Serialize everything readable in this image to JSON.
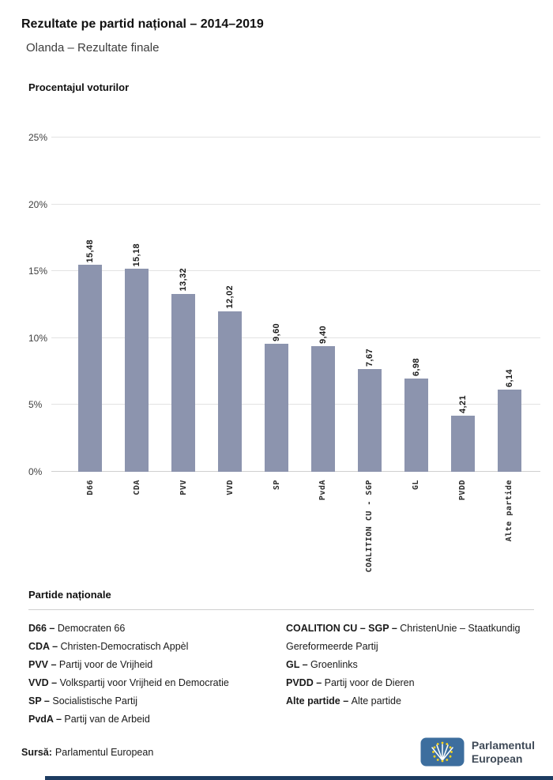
{
  "chart_data": {
    "type": "bar",
    "title": "Rezultate pe partid național – 2014–2019",
    "subtitle": "Olanda – Rezultate finale",
    "ylabel": "Procentajul voturilor",
    "categories": [
      "D66",
      "CDA",
      "PVV",
      "VVD",
      "SP",
      "PvdA",
      "COALITION CU - SGP",
      "GL",
      "PVDD",
      "Alte partide"
    ],
    "values": [
      15.48,
      15.18,
      13.32,
      12.02,
      9.6,
      9.4,
      7.67,
      6.98,
      4.21,
      6.14
    ],
    "value_labels": [
      "15,48",
      "15,18",
      "13,32",
      "12,02",
      "9,60",
      "9,40",
      "7,67",
      "6,98",
      "4,21",
      "6,14"
    ],
    "ylim": [
      0,
      25
    ],
    "yticks": [
      "0%",
      "5%",
      "10%",
      "15%",
      "20%",
      "25%"
    ],
    "grid": true,
    "legend_position": "below",
    "bar_color": "#8c94ae"
  },
  "legend": {
    "title": "Partide naționale",
    "separator": " – ",
    "columns": [
      [
        {
          "abbr": "D66",
          "name": "Democraten 66"
        },
        {
          "abbr": "CDA",
          "name": "Christen-Democratisch Appèl"
        },
        {
          "abbr": "PVV",
          "name": "Partij voor de Vrijheid"
        },
        {
          "abbr": "VVD",
          "name": "Volkspartij voor Vrijheid en Democratie"
        },
        {
          "abbr": "SP",
          "name": "Socialistische Partij"
        },
        {
          "abbr": "PvdA",
          "name": "Partij van de Arbeid"
        }
      ],
      [
        {
          "abbr": "COALITION CU – SGP",
          "name": "ChristenUnie – Staatkundig Gereformeerde Partij"
        },
        {
          "abbr": "GL",
          "name": "Groenlinks"
        },
        {
          "abbr": "PVDD",
          "name": "Partij voor de Dieren"
        },
        {
          "abbr": "Alte partide",
          "name": "Alte partide"
        }
      ]
    ]
  },
  "footer": {
    "source_label": "Sursă:",
    "source_text": "Parlamentul European",
    "bar_color": "#1d3c61",
    "logo": {
      "line1": "Parlamentul",
      "line2": "European",
      "blue": "#3d6e9e",
      "star_color": "#ffd617",
      "text_color": "#3f4a57"
    }
  }
}
